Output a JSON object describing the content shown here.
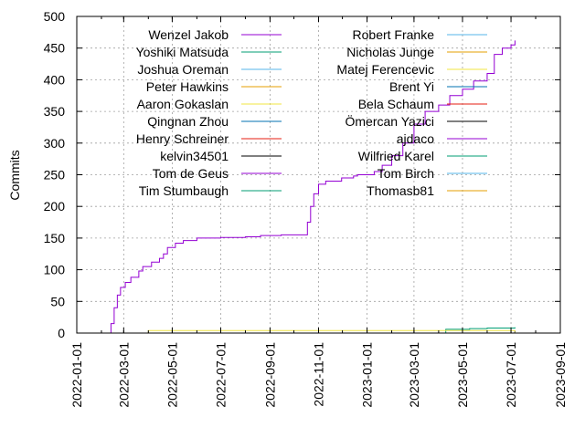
{
  "chart_data": {
    "type": "line",
    "title": "",
    "xlabel": "",
    "ylabel": "Commits",
    "ylim": [
      0,
      500
    ],
    "yticks": [
      "0",
      "50",
      "100",
      "150",
      "200",
      "250",
      "300",
      "350",
      "400",
      "450",
      "500"
    ],
    "xlim": [
      "2022-01-01",
      "2023-09-01"
    ],
    "xticks": [
      "2022-01-01",
      "2022-03-01",
      "2022-05-01",
      "2022-07-01",
      "2022-09-01",
      "2022-11-01",
      "2023-01-01",
      "2023-03-01",
      "2023-05-01",
      "2023-07-01",
      "2023-09-01"
    ],
    "grid": true,
    "legend_position": "top-left, inside plot, two columns",
    "series": [
      {
        "name": "Wenzel Jakob",
        "color": "#9400d3",
        "x": [
          "2022-02-09",
          "2022-02-13",
          "2022-02-17",
          "2022-02-21",
          "2022-02-25",
          "2022-03-03",
          "2022-03-10",
          "2022-03-20",
          "2022-03-25",
          "2022-04-05",
          "2022-04-15",
          "2022-04-20",
          "2022-04-25",
          "2022-05-05",
          "2022-05-15",
          "2022-06-01",
          "2022-07-01",
          "2022-08-01",
          "2022-08-20",
          "2022-09-15",
          "2022-10-15",
          "2022-10-18",
          "2022-10-22",
          "2022-10-26",
          "2022-11-01",
          "2022-11-10",
          "2022-11-30",
          "2022-12-15",
          "2022-12-20",
          "2023-01-10",
          "2023-01-20",
          "2023-02-01",
          "2023-02-15",
          "2023-03-01",
          "2023-03-15",
          "2023-04-01",
          "2023-04-15",
          "2023-05-01",
          "2023-05-15",
          "2023-06-01",
          "2023-06-10",
          "2023-06-20",
          "2023-07-01",
          "2023-07-06"
        ],
        "y": [
          0,
          15,
          40,
          60,
          72,
          80,
          88,
          98,
          105,
          112,
          118,
          125,
          135,
          142,
          146,
          150,
          151,
          152,
          154,
          155,
          155,
          175,
          200,
          220,
          235,
          240,
          245,
          248,
          250,
          255,
          265,
          280,
          300,
          330,
          350,
          360,
          375,
          385,
          398,
          410,
          440,
          450,
          455,
          462
        ]
      },
      {
        "name": "Yoshiki Matsuda",
        "color": "#009e73",
        "x": [
          "2022-01-01",
          "2023-04-05",
          "2023-04-10",
          "2023-05-10",
          "2023-06-01",
          "2023-07-06"
        ],
        "y": [
          0,
          0,
          6,
          7,
          8,
          9
        ]
      },
      {
        "name": "Joshua Oreman",
        "color": "#56b4e9",
        "x": [
          "2022-01-01",
          "2022-10-20",
          "2023-07-06"
        ],
        "y": [
          0,
          0,
          3
        ]
      },
      {
        "name": "Peter Hawkins",
        "color": "#e69f00",
        "x": [
          "2022-01-01",
          "2022-03-15",
          "2023-07-06"
        ],
        "y": [
          0,
          0,
          4
        ]
      },
      {
        "name": "Aaron Gokaslan",
        "color": "#f0e442",
        "x": [
          "2022-01-01",
          "2022-03-10",
          "2022-04-01",
          "2023-07-06"
        ],
        "y": [
          0,
          0,
          4,
          4
        ]
      },
      {
        "name": "Qingnan Zhou",
        "color": "#0072b2",
        "x": [
          "2022-01-01",
          "2022-04-01",
          "2023-07-06"
        ],
        "y": [
          0,
          0,
          2
        ]
      },
      {
        "name": "Henry Schreiner",
        "color": "#e51e10",
        "x": [
          "2022-01-01",
          "2022-03-01",
          "2023-07-06"
        ],
        "y": [
          0,
          0,
          2
        ]
      },
      {
        "name": "kelvin34501",
        "color": "#000000",
        "x": [
          "2022-01-01",
          "2023-07-06"
        ],
        "y": [
          0,
          1
        ]
      },
      {
        "name": "Tom de Geus",
        "color": "#9400d3",
        "x": [
          "2022-01-01",
          "2023-07-06"
        ],
        "y": [
          0,
          1
        ]
      },
      {
        "name": "Tim Stumbaugh",
        "color": "#009e73",
        "x": [
          "2022-01-01",
          "2022-10-15",
          "2023-07-06"
        ],
        "y": [
          0,
          0,
          2
        ]
      },
      {
        "name": "Robert Franke",
        "color": "#56b4e9",
        "x": [
          "2022-01-01",
          "2023-07-06"
        ],
        "y": [
          0,
          1
        ]
      },
      {
        "name": "Nicholas Junge",
        "color": "#e69f00",
        "x": [
          "2022-01-01",
          "2023-07-06"
        ],
        "y": [
          0,
          1
        ]
      },
      {
        "name": "Matej Ferencevic",
        "color": "#f0e442",
        "x": [
          "2022-01-01",
          "2023-07-06"
        ],
        "y": [
          0,
          1
        ]
      },
      {
        "name": "Brent Yi",
        "color": "#0072b2",
        "x": [
          "2022-01-01",
          "2023-07-06"
        ],
        "y": [
          0,
          1
        ]
      },
      {
        "name": "Bela Schaum",
        "color": "#e51e10",
        "x": [
          "2022-01-01",
          "2023-07-06"
        ],
        "y": [
          0,
          1
        ]
      },
      {
        "name": "Ömercan Yazici",
        "color": "#000000",
        "x": [
          "2022-01-01",
          "2023-07-06"
        ],
        "y": [
          0,
          1
        ]
      },
      {
        "name": "ajdaco",
        "color": "#9400d3",
        "x": [
          "2022-01-01",
          "2023-07-06"
        ],
        "y": [
          0,
          1
        ]
      },
      {
        "name": "Wilfried Karel",
        "color": "#009e73",
        "x": [
          "2022-01-01",
          "2023-07-06"
        ],
        "y": [
          0,
          1
        ]
      },
      {
        "name": "Tom Birch",
        "color": "#56b4e9",
        "x": [
          "2022-01-01",
          "2023-07-06"
        ],
        "y": [
          0,
          1
        ]
      },
      {
        "name": "Thomasb81",
        "color": "#e69f00",
        "x": [
          "2022-01-01",
          "2023-07-06"
        ],
        "y": [
          0,
          1
        ]
      }
    ]
  }
}
